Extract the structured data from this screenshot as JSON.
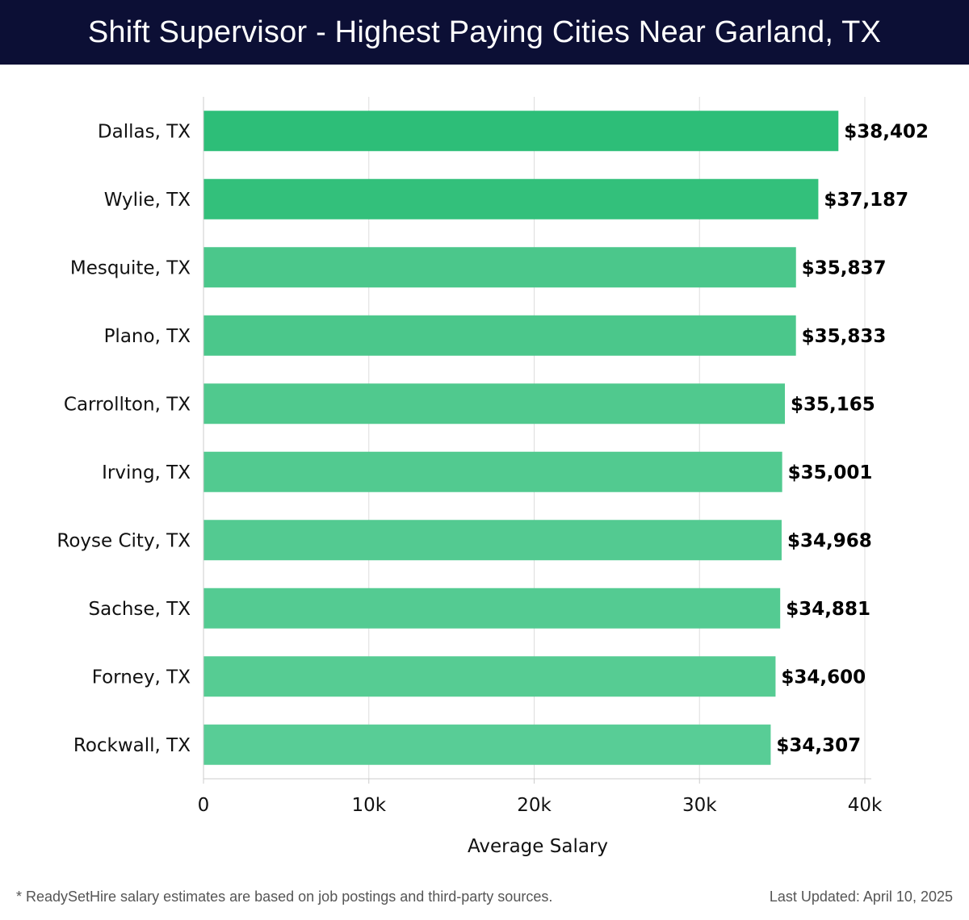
{
  "header": {
    "title": "Shift Supervisor - Highest Paying Cities Near Garland, TX"
  },
  "chart_data": {
    "type": "bar",
    "orientation": "horizontal",
    "title": "Shift Supervisor - Highest Paying Cities Near Garland, TX",
    "xlabel": "Average Salary",
    "ylabel": "",
    "xlim": [
      0,
      40000
    ],
    "x_ticks": [
      0,
      10000,
      20000,
      30000,
      40000
    ],
    "x_tick_labels": [
      "0",
      "10k",
      "20k",
      "30k",
      "40k"
    ],
    "grid": "vertical",
    "categories": [
      "Dallas, TX",
      "Wylie, TX",
      "Mesquite, TX",
      "Plano, TX",
      "Carrollton, TX",
      "Irving, TX",
      "Royse City, TX",
      "Sachse, TX",
      "Forney, TX",
      "Rockwall, TX"
    ],
    "values": [
      38402,
      37187,
      35837,
      35833,
      35165,
      35001,
      34968,
      34881,
      34600,
      34307
    ],
    "value_labels": [
      "$38,402",
      "$37,187",
      "$35,837",
      "$35,833",
      "$35,165",
      "$35,001",
      "$34,968",
      "$34,881",
      "$34,600",
      "$34,307"
    ],
    "colors": [
      "#2dbe78",
      "#33c07b",
      "#4bc78b",
      "#4bc78b",
      "#50c98e",
      "#52ca90",
      "#53ca91",
      "#54cb92",
      "#56cc93",
      "#58cd96"
    ]
  },
  "footer": {
    "note": "* ReadySetHire salary estimates are based on job postings and third-party sources.",
    "updated": "Last Updated: April 10, 2025"
  }
}
